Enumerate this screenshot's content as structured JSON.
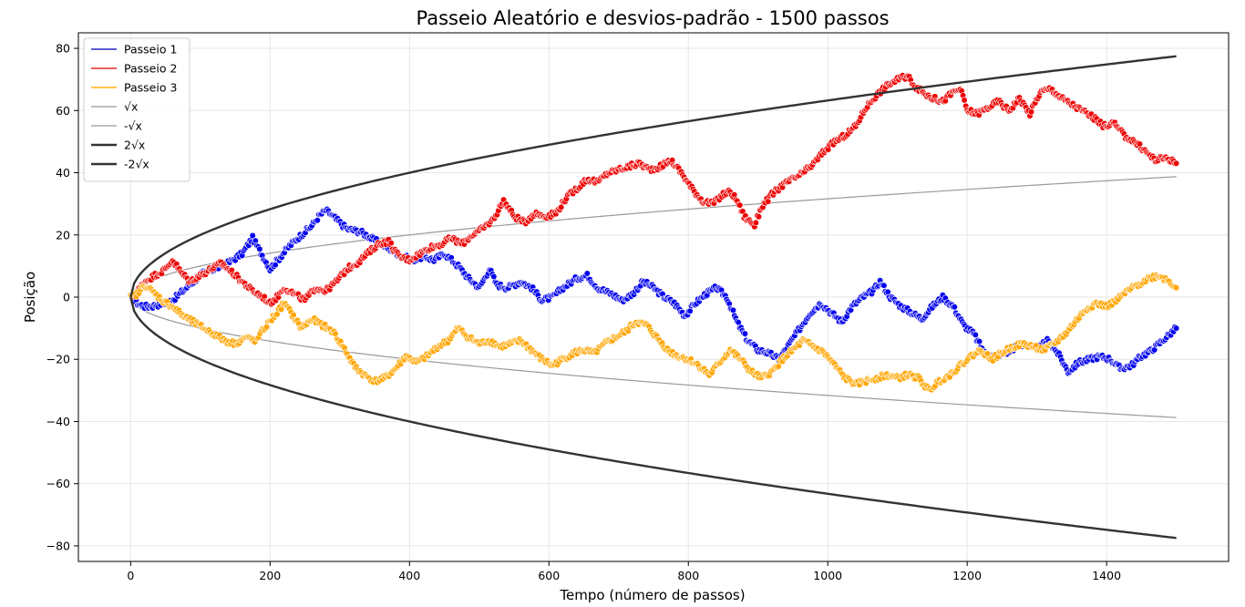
{
  "chart_data": {
    "type": "line",
    "title": "Passeio Aleatório e  desvios-padrão - 1500 passos",
    "xlabel": "Tempo (número de passos)",
    "ylabel": "Posição",
    "xlim": [
      -75,
      1575
    ],
    "ylim": [
      -85,
      85
    ],
    "xticks": [
      0,
      200,
      400,
      600,
      800,
      1000,
      1200,
      1400
    ],
    "yticks": [
      -80,
      -60,
      -40,
      -20,
      0,
      20,
      40,
      60,
      80
    ],
    "xtick_labels": [
      "0",
      "200",
      "400",
      "600",
      "800",
      "1000",
      "1200",
      "1400"
    ],
    "ytick_labels": [
      "−80",
      "−60",
      "−40",
      "−20",
      "0",
      "20",
      "40",
      "60",
      "80"
    ],
    "grid": true,
    "legend_position": "top-left",
    "series": [
      {
        "name": "Passeio 1",
        "color": "#0000ee",
        "style": "markers",
        "points": [
          [
            0,
            0
          ],
          [
            10,
            -2
          ],
          [
            20,
            -3
          ],
          [
            30,
            -3
          ],
          [
            45,
            -2
          ],
          [
            60,
            -1
          ],
          [
            75,
            2
          ],
          [
            90,
            5
          ],
          [
            105,
            8
          ],
          [
            120,
            9
          ],
          [
            140,
            11
          ],
          [
            160,
            14
          ],
          [
            175,
            19
          ],
          [
            185,
            15
          ],
          [
            200,
            9
          ],
          [
            215,
            13
          ],
          [
            230,
            17
          ],
          [
            245,
            20
          ],
          [
            260,
            23
          ],
          [
            270,
            26
          ],
          [
            280,
            28
          ],
          [
            295,
            25
          ],
          [
            310,
            22
          ],
          [
            330,
            21
          ],
          [
            345,
            19
          ],
          [
            360,
            17
          ],
          [
            375,
            15
          ],
          [
            390,
            13
          ],
          [
            405,
            12
          ],
          [
            420,
            13
          ],
          [
            435,
            12
          ],
          [
            450,
            14
          ],
          [
            460,
            12
          ],
          [
            470,
            10
          ],
          [
            485,
            6
          ],
          [
            500,
            3
          ],
          [
            515,
            9
          ],
          [
            525,
            4
          ],
          [
            540,
            3
          ],
          [
            560,
            5
          ],
          [
            575,
            3
          ],
          [
            590,
            -1
          ],
          [
            605,
            0
          ],
          [
            620,
            3
          ],
          [
            640,
            6
          ],
          [
            655,
            7
          ],
          [
            670,
            3
          ],
          [
            690,
            1
          ],
          [
            705,
            -1
          ],
          [
            720,
            1
          ],
          [
            735,
            5
          ],
          [
            750,
            3
          ],
          [
            765,
            0
          ],
          [
            780,
            -2
          ],
          [
            795,
            -6
          ],
          [
            810,
            -2
          ],
          [
            825,
            1
          ],
          [
            840,
            3
          ],
          [
            855,
            0
          ],
          [
            870,
            -8
          ],
          [
            885,
            -14
          ],
          [
            900,
            -17
          ],
          [
            915,
            -18
          ],
          [
            930,
            -20
          ],
          [
            945,
            -15
          ],
          [
            960,
            -10
          ],
          [
            975,
            -5
          ],
          [
            990,
            -2
          ],
          [
            1005,
            -5
          ],
          [
            1020,
            -8
          ],
          [
            1035,
            -3
          ],
          [
            1050,
            0
          ],
          [
            1065,
            2
          ],
          [
            1075,
            5
          ],
          [
            1090,
            0
          ],
          [
            1105,
            -3
          ],
          [
            1120,
            -5
          ],
          [
            1135,
            -7
          ],
          [
            1150,
            -3
          ],
          [
            1165,
            0
          ],
          [
            1180,
            -3
          ],
          [
            1195,
            -9
          ],
          [
            1210,
            -12
          ],
          [
            1225,
            -18
          ],
          [
            1240,
            -19
          ],
          [
            1255,
            -18
          ],
          [
            1270,
            -16
          ],
          [
            1285,
            -15
          ],
          [
            1300,
            -17
          ],
          [
            1315,
            -14
          ],
          [
            1330,
            -18
          ],
          [
            1345,
            -24
          ],
          [
            1360,
            -21
          ],
          [
            1375,
            -20
          ],
          [
            1390,
            -19
          ],
          [
            1405,
            -20
          ],
          [
            1420,
            -23
          ],
          [
            1435,
            -22
          ],
          [
            1450,
            -19
          ],
          [
            1465,
            -17
          ],
          [
            1480,
            -14
          ],
          [
            1490,
            -12
          ],
          [
            1500,
            -10
          ]
        ]
      },
      {
        "name": "Passeio 2",
        "color": "#ee0000",
        "style": "markers",
        "points": [
          [
            0,
            0
          ],
          [
            10,
            2
          ],
          [
            20,
            5
          ],
          [
            35,
            7
          ],
          [
            50,
            9
          ],
          [
            60,
            12
          ],
          [
            72,
            8
          ],
          [
            85,
            5
          ],
          [
            100,
            7
          ],
          [
            115,
            9
          ],
          [
            130,
            11
          ],
          [
            145,
            8
          ],
          [
            160,
            5
          ],
          [
            175,
            2
          ],
          [
            190,
            0
          ],
          [
            200,
            -2
          ],
          [
            210,
            0
          ],
          [
            220,
            3
          ],
          [
            235,
            1
          ],
          [
            250,
            -1
          ],
          [
            265,
            3
          ],
          [
            280,
            2
          ],
          [
            295,
            5
          ],
          [
            310,
            9
          ],
          [
            325,
            11
          ],
          [
            340,
            14
          ],
          [
            355,
            17
          ],
          [
            370,
            18
          ],
          [
            385,
            13
          ],
          [
            400,
            12
          ],
          [
            415,
            14
          ],
          [
            430,
            16
          ],
          [
            445,
            17
          ],
          [
            460,
            19
          ],
          [
            475,
            17
          ],
          [
            490,
            20
          ],
          [
            505,
            22
          ],
          [
            520,
            25
          ],
          [
            535,
            31
          ],
          [
            550,
            26
          ],
          [
            565,
            24
          ],
          [
            580,
            27
          ],
          [
            595,
            26
          ],
          [
            610,
            27
          ],
          [
            625,
            32
          ],
          [
            640,
            35
          ],
          [
            655,
            38
          ],
          [
            670,
            37
          ],
          [
            685,
            40
          ],
          [
            700,
            41
          ],
          [
            715,
            42
          ],
          [
            730,
            43
          ],
          [
            745,
            41
          ],
          [
            760,
            42
          ],
          [
            775,
            44
          ],
          [
            790,
            40
          ],
          [
            805,
            35
          ],
          [
            820,
            31
          ],
          [
            835,
            30
          ],
          [
            850,
            33
          ],
          [
            860,
            34
          ],
          [
            870,
            31
          ],
          [
            880,
            26
          ],
          [
            895,
            23
          ],
          [
            905,
            29
          ],
          [
            920,
            33
          ],
          [
            935,
            36
          ],
          [
            950,
            38
          ],
          [
            965,
            40
          ],
          [
            980,
            43
          ],
          [
            995,
            47
          ],
          [
            1010,
            50
          ],
          [
            1025,
            52
          ],
          [
            1040,
            55
          ],
          [
            1055,
            61
          ],
          [
            1070,
            65
          ],
          [
            1085,
            68
          ],
          [
            1100,
            70
          ],
          [
            1115,
            71
          ],
          [
            1125,
            68
          ],
          [
            1135,
            66
          ],
          [
            1150,
            64
          ],
          [
            1165,
            63
          ],
          [
            1180,
            66
          ],
          [
            1190,
            67
          ],
          [
            1200,
            60
          ],
          [
            1215,
            59
          ],
          [
            1230,
            61
          ],
          [
            1245,
            63
          ],
          [
            1260,
            60
          ],
          [
            1275,
            64
          ],
          [
            1290,
            59
          ],
          [
            1305,
            66
          ],
          [
            1320,
            67
          ],
          [
            1335,
            64
          ],
          [
            1350,
            62
          ],
          [
            1365,
            60
          ],
          [
            1380,
            58
          ],
          [
            1395,
            55
          ],
          [
            1410,
            56
          ],
          [
            1425,
            52
          ],
          [
            1440,
            50
          ],
          [
            1455,
            47
          ],
          [
            1470,
            44
          ],
          [
            1485,
            45
          ],
          [
            1500,
            43
          ]
        ]
      },
      {
        "name": "Passeio 3",
        "color": "#ffa500",
        "style": "markers",
        "points": [
          [
            0,
            0
          ],
          [
            10,
            1
          ],
          [
            20,
            4
          ],
          [
            30,
            2
          ],
          [
            45,
            -1
          ],
          [
            60,
            -3
          ],
          [
            75,
            -6
          ],
          [
            90,
            -8
          ],
          [
            105,
            -10
          ],
          [
            120,
            -12
          ],
          [
            135,
            -14
          ],
          [
            150,
            -15
          ],
          [
            165,
            -13
          ],
          [
            180,
            -14
          ],
          [
            195,
            -9
          ],
          [
            210,
            -5
          ],
          [
            220,
            -2
          ],
          [
            230,
            -5
          ],
          [
            245,
            -10
          ],
          [
            260,
            -7
          ],
          [
            275,
            -9
          ],
          [
            290,
            -11
          ],
          [
            305,
            -16
          ],
          [
            320,
            -22
          ],
          [
            335,
            -25
          ],
          [
            350,
            -27
          ],
          [
            365,
            -26
          ],
          [
            380,
            -23
          ],
          [
            395,
            -19
          ],
          [
            410,
            -21
          ],
          [
            425,
            -19
          ],
          [
            440,
            -16
          ],
          [
            455,
            -14
          ],
          [
            470,
            -10
          ],
          [
            485,
            -13
          ],
          [
            500,
            -15
          ],
          [
            515,
            -14
          ],
          [
            530,
            -16
          ],
          [
            545,
            -15
          ],
          [
            560,
            -14
          ],
          [
            575,
            -17
          ],
          [
            590,
            -20
          ],
          [
            605,
            -22
          ],
          [
            620,
            -20
          ],
          [
            635,
            -18
          ],
          [
            650,
            -17
          ],
          [
            665,
            -18
          ],
          [
            680,
            -15
          ],
          [
            695,
            -13
          ],
          [
            710,
            -11
          ],
          [
            725,
            -8
          ],
          [
            740,
            -9
          ],
          [
            755,
            -13
          ],
          [
            770,
            -17
          ],
          [
            785,
            -19
          ],
          [
            800,
            -20
          ],
          [
            815,
            -22
          ],
          [
            830,
            -25
          ],
          [
            845,
            -21
          ],
          [
            860,
            -17
          ],
          [
            875,
            -20
          ],
          [
            890,
            -24
          ],
          [
            905,
            -26
          ],
          [
            920,
            -24
          ],
          [
            935,
            -20
          ],
          [
            950,
            -17
          ],
          [
            965,
            -14
          ],
          [
            980,
            -16
          ],
          [
            995,
            -18
          ],
          [
            1010,
            -22
          ],
          [
            1025,
            -26
          ],
          [
            1040,
            -28
          ],
          [
            1055,
            -27
          ],
          [
            1070,
            -26
          ],
          [
            1085,
            -25
          ],
          [
            1100,
            -26
          ],
          [
            1115,
            -25
          ],
          [
            1130,
            -26
          ],
          [
            1145,
            -30
          ],
          [
            1160,
            -27
          ],
          [
            1175,
            -25
          ],
          [
            1190,
            -22
          ],
          [
            1205,
            -19
          ],
          [
            1220,
            -17
          ],
          [
            1235,
            -20
          ],
          [
            1250,
            -18
          ],
          [
            1265,
            -16
          ],
          [
            1280,
            -15
          ],
          [
            1295,
            -16
          ],
          [
            1310,
            -17
          ],
          [
            1325,
            -15
          ],
          [
            1340,
            -12
          ],
          [
            1355,
            -8
          ],
          [
            1370,
            -4
          ],
          [
            1385,
            -2
          ],
          [
            1400,
            -3
          ],
          [
            1415,
            -1
          ],
          [
            1430,
            2
          ],
          [
            1445,
            4
          ],
          [
            1460,
            6
          ],
          [
            1475,
            7
          ],
          [
            1490,
            5
          ],
          [
            1500,
            3
          ]
        ]
      },
      {
        "name": "√x",
        "color": "#999999",
        "style": "line",
        "function": "sqrt",
        "factor": 1,
        "x_range": [
          0,
          1500
        ]
      },
      {
        "name": "-√x",
        "color": "#999999",
        "style": "line",
        "function": "sqrt",
        "factor": -1,
        "x_range": [
          0,
          1500
        ]
      },
      {
        "name": "2√x",
        "color": "#333333",
        "style": "line-thick",
        "function": "sqrt",
        "factor": 2,
        "x_range": [
          0,
          1500
        ]
      },
      {
        "name": "-2√x",
        "color": "#333333",
        "style": "line-thick",
        "function": "sqrt",
        "factor": -2,
        "x_range": [
          0,
          1500
        ]
      }
    ]
  }
}
